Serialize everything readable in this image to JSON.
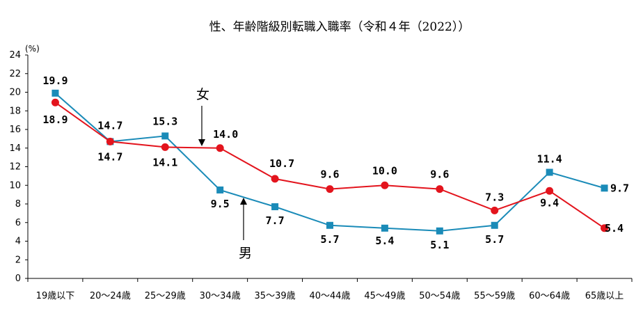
{
  "chart_data": {
    "type": "line",
    "title": "性、年齢階級別転職入職率（令和４年（2022））",
    "y_unit": "(%)",
    "ylim": [
      0,
      24
    ],
    "yticks": [
      0,
      2,
      4,
      6,
      8,
      10,
      12,
      14,
      16,
      18,
      20,
      22,
      24
    ],
    "grid": false,
    "categories": [
      "19歳以下",
      "20～24歳",
      "25～29歳",
      "30～34歳",
      "35～39歳",
      "40～44歳",
      "45～49歳",
      "50～54歳",
      "55～59歳",
      "60～64歳",
      "65歳以上"
    ],
    "series": [
      {
        "name": "女",
        "color": "#e3141d",
        "marker": "circle",
        "values": [
          18.9,
          14.7,
          14.1,
          14.0,
          10.7,
          9.6,
          10.0,
          9.6,
          7.3,
          9.4,
          5.4
        ],
        "labels": [
          "18.9",
          "14.7",
          "14.1",
          "14.0",
          "10.7",
          "9.6",
          "10.0",
          "9.6",
          "",
          "9.4",
          "5.4"
        ]
      },
      {
        "name": "男",
        "color": "#1a8bb8",
        "marker": "square",
        "values": [
          19.9,
          14.7,
          15.3,
          9.5,
          7.7,
          5.7,
          5.4,
          5.1,
          5.7,
          11.4,
          9.7
        ],
        "labels": [
          "19.9",
          "14.7",
          "15.3",
          "9.5",
          "7.7",
          "5.7",
          "5.4",
          "5.1",
          "5.7",
          "11.4",
          "9.7"
        ]
      }
    ],
    "extra_labels": [
      "7.3"
    ],
    "annotations": [
      {
        "text": "女",
        "series": "女"
      },
      {
        "text": "男",
        "series": "男"
      }
    ]
  }
}
